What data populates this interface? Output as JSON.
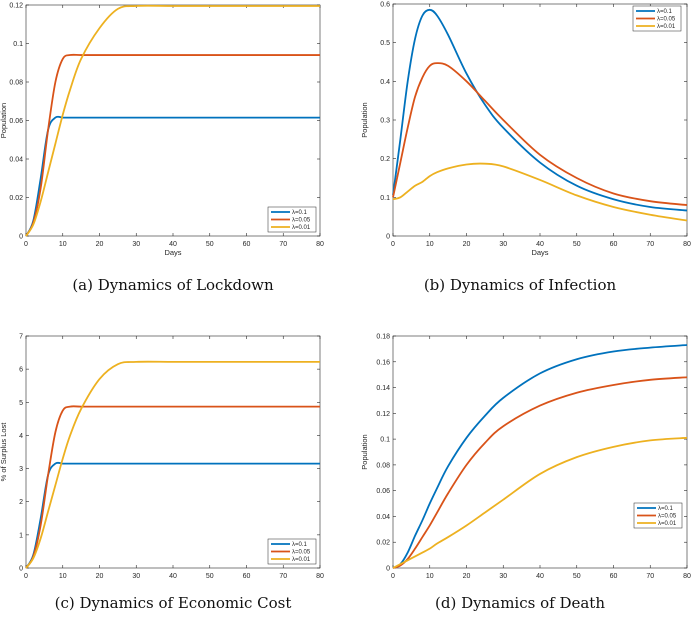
{
  "chart_data": [
    {
      "type": "line",
      "caption": "(a) Dynamics of Lockdown",
      "xlabel": "Days",
      "ylabel": "Population",
      "xlim": [
        0,
        80
      ],
      "ylim": [
        0,
        0.12
      ],
      "xticks": [
        "0",
        "10",
        "20",
        "30",
        "40",
        "50",
        "60",
        "70",
        "80"
      ],
      "yticks": [
        "0",
        "0.02",
        "0.04",
        "0.06",
        "0.08",
        "0.1",
        "0.12"
      ],
      "legend_position": "bottom-right",
      "x": [
        0,
        2,
        4,
        6,
        8,
        10,
        12,
        15,
        20,
        25,
        30,
        40,
        50,
        60,
        70,
        80
      ],
      "series": [
        {
          "name": "λ=0.1",
          "color": "#0072BD",
          "values": [
            0,
            0.008,
            0.03,
            0.055,
            0.0615,
            0.0615,
            0.0615,
            0.0615,
            0.0615,
            0.0615,
            0.0615,
            0.0615,
            0.0615,
            0.0615,
            0.0615,
            0.0615
          ]
        },
        {
          "name": "λ=0.05",
          "color": "#D95319",
          "values": [
            0,
            0.007,
            0.025,
            0.055,
            0.08,
            0.092,
            0.094,
            0.094,
            0.094,
            0.094,
            0.094,
            0.094,
            0.094,
            0.094,
            0.094,
            0.094
          ]
        },
        {
          "name": "λ=0.01",
          "color": "#EDB120",
          "values": [
            0,
            0.006,
            0.018,
            0.033,
            0.048,
            0.063,
            0.076,
            0.092,
            0.108,
            0.118,
            0.1195,
            0.1195,
            0.1195,
            0.1195,
            0.1195,
            0.1195
          ]
        }
      ]
    },
    {
      "type": "line",
      "caption": "(b) Dynamics of Infection",
      "xlabel": "Days",
      "ylabel": "Population",
      "xlim": [
        0,
        80
      ],
      "ylim": [
        0,
        0.6
      ],
      "xticks": [
        "0",
        "10",
        "20",
        "30",
        "40",
        "50",
        "60",
        "70",
        "80"
      ],
      "yticks": [
        "0",
        "0.1",
        "0.2",
        "0.3",
        "0.4",
        "0.5",
        "0.6"
      ],
      "legend_position": "top-right",
      "x": [
        0,
        2,
        4,
        6,
        8,
        10,
        12,
        15,
        20,
        25,
        30,
        40,
        50,
        60,
        70,
        80
      ],
      "series": [
        {
          "name": "λ=0.1",
          "color": "#0072BD",
          "values": [
            0.105,
            0.25,
            0.4,
            0.51,
            0.57,
            0.585,
            0.57,
            0.52,
            0.42,
            0.34,
            0.28,
            0.19,
            0.13,
            0.095,
            0.075,
            0.066
          ]
        },
        {
          "name": "λ=0.05",
          "color": "#D95319",
          "values": [
            0.1,
            0.19,
            0.28,
            0.36,
            0.41,
            0.44,
            0.447,
            0.44,
            0.4,
            0.35,
            0.3,
            0.21,
            0.15,
            0.11,
            0.09,
            0.08
          ]
        },
        {
          "name": "λ=0.01",
          "color": "#EDB120",
          "values": [
            0.095,
            0.1,
            0.115,
            0.13,
            0.14,
            0.155,
            0.165,
            0.175,
            0.185,
            0.187,
            0.18,
            0.145,
            0.105,
            0.075,
            0.055,
            0.04
          ]
        }
      ]
    },
    {
      "type": "line",
      "caption": "(c) Dynamics of Economic Cost",
      "xlabel": "",
      "ylabel": "% of Surplus Lost",
      "xlim": [
        0,
        80
      ],
      "ylim": [
        0,
        7
      ],
      "xticks": [
        "0",
        "10",
        "20",
        "30",
        "40",
        "50",
        "60",
        "70",
        "80"
      ],
      "yticks": [
        "0",
        "1",
        "2",
        "3",
        "4",
        "5",
        "6",
        "7"
      ],
      "legend_position": "bottom-right",
      "x": [
        0,
        2,
        4,
        6,
        8,
        10,
        12,
        15,
        20,
        25,
        30,
        40,
        50,
        60,
        70,
        80
      ],
      "series": [
        {
          "name": "λ=0.1",
          "color": "#0072BD",
          "values": [
            0,
            0.4,
            1.5,
            2.8,
            3.15,
            3.15,
            3.15,
            3.15,
            3.15,
            3.15,
            3.15,
            3.15,
            3.15,
            3.15,
            3.15,
            3.15
          ]
        },
        {
          "name": "λ=0.05",
          "color": "#D95319",
          "values": [
            0,
            0.35,
            1.3,
            2.8,
            4.1,
            4.75,
            4.87,
            4.87,
            4.87,
            4.87,
            4.87,
            4.87,
            4.87,
            4.87,
            4.87,
            4.87
          ]
        },
        {
          "name": "λ=0.01",
          "color": "#EDB120",
          "values": [
            0,
            0.3,
            0.9,
            1.7,
            2.5,
            3.3,
            4.0,
            4.8,
            5.7,
            6.15,
            6.22,
            6.22,
            6.22,
            6.22,
            6.22,
            6.22
          ]
        }
      ]
    },
    {
      "type": "line",
      "caption": "(d) Dynamics of Death",
      "xlabel": "",
      "ylabel": "Population",
      "xlim": [
        0,
        80
      ],
      "ylim": [
        0,
        0.18
      ],
      "xticks": [
        "0",
        "10",
        "20",
        "30",
        "40",
        "50",
        "60",
        "70",
        "80"
      ],
      "yticks": [
        "0",
        "0.02",
        "0.04",
        "0.06",
        "0.08",
        "0.1",
        "0.12",
        "0.14",
        "0.16",
        "0.18"
      ],
      "legend_position": "right",
      "x": [
        0,
        2,
        4,
        6,
        8,
        10,
        12,
        15,
        20,
        25,
        30,
        40,
        50,
        60,
        70,
        80
      ],
      "series": [
        {
          "name": "λ=0.1",
          "color": "#0072BD",
          "values": [
            0,
            0.003,
            0.012,
            0.025,
            0.037,
            0.05,
            0.062,
            0.079,
            0.101,
            0.118,
            0.132,
            0.151,
            0.162,
            0.168,
            0.171,
            0.173
          ]
        },
        {
          "name": "λ=0.05",
          "color": "#D95319",
          "values": [
            0,
            0.002,
            0.007,
            0.015,
            0.024,
            0.033,
            0.043,
            0.058,
            0.08,
            0.097,
            0.11,
            0.126,
            0.136,
            0.142,
            0.146,
            0.148
          ]
        },
        {
          "name": "λ=0.01",
          "color": "#EDB120",
          "values": [
            0,
            0.003,
            0.006,
            0.009,
            0.012,
            0.015,
            0.019,
            0.024,
            0.033,
            0.043,
            0.053,
            0.073,
            0.086,
            0.094,
            0.099,
            0.101
          ]
        }
      ]
    }
  ]
}
